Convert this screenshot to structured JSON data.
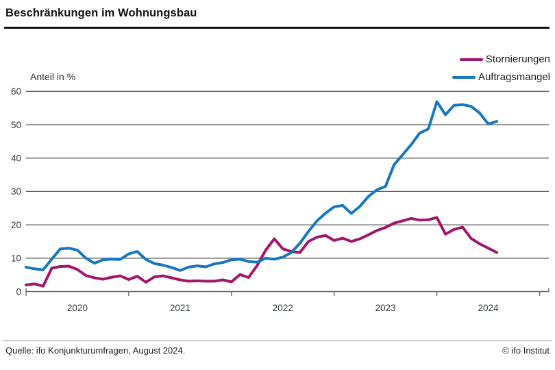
{
  "header": {
    "title": "Beschränkungen im Wohnungsbau"
  },
  "annotations": {
    "y_axis_unit": "Anteil in %"
  },
  "legend": {
    "items": [
      {
        "label": "Stornierungen",
        "color": "#a3156b"
      },
      {
        "label": "Auftragsmangel",
        "color": "#1777c0"
      }
    ]
  },
  "footer": {
    "source": "Quelle: ifo Konjunkturumfragen, August 2024.",
    "copyright": "© ifo Institut"
  },
  "chart_data": {
    "type": "line",
    "title": "Beschränkungen im Wohnungsbau",
    "ylabel": "Anteil in %",
    "xlabel": "",
    "x_frequency": "monthly",
    "x_range": [
      "2020-01",
      "2024-08"
    ],
    "x_tick_years": [
      "2020",
      "2021",
      "2022",
      "2023",
      "2024"
    ],
    "ylim": [
      0,
      60
    ],
    "yticks": [
      0,
      10,
      20,
      30,
      40,
      50,
      60
    ],
    "grid": "horizontal",
    "grid_color": "#5f5f5f",
    "axis_text_color": "#333a42",
    "legend_position": "top-right",
    "series": [
      {
        "name": "Stornierungen",
        "color": "#a3156b",
        "values": [
          2.0,
          2.3,
          1.6,
          7.0,
          7.5,
          7.6,
          6.6,
          4.8,
          4.1,
          3.7,
          4.3,
          4.7,
          3.6,
          4.6,
          2.8,
          4.4,
          4.7,
          4.1,
          3.5,
          3.1,
          3.2,
          3.1,
          3.1,
          3.5,
          2.9,
          5.1,
          4.2,
          7.8,
          12.4,
          15.8,
          12.8,
          12.0,
          11.7,
          15.0,
          16.3,
          16.8,
          15.3,
          16.0,
          15.0,
          15.8,
          17.0,
          18.3,
          19.2,
          20.5,
          21.2,
          21.9,
          21.4,
          21.5,
          22.2,
          17.2,
          18.6,
          19.3,
          15.9,
          14.3,
          13.0,
          11.7
        ]
      },
      {
        "name": "Auftragsmangel",
        "color": "#1777c0",
        "values": [
          7.3,
          6.8,
          6.5,
          9.7,
          12.8,
          13.0,
          12.4,
          10.0,
          8.5,
          9.5,
          9.7,
          9.6,
          11.3,
          12.0,
          9.6,
          8.4,
          7.9,
          7.2,
          6.3,
          7.3,
          7.7,
          7.4,
          8.3,
          8.7,
          9.5,
          9.7,
          9.0,
          8.8,
          10.0,
          9.7,
          10.3,
          11.7,
          14.5,
          18.0,
          21.2,
          23.5,
          25.4,
          25.8,
          23.4,
          25.5,
          28.5,
          30.5,
          31.5,
          38.0,
          41.0,
          44.0,
          47.5,
          48.7,
          56.9,
          53.0,
          55.8,
          56.0,
          55.5,
          53.5,
          50.2,
          51.0
        ]
      }
    ]
  }
}
